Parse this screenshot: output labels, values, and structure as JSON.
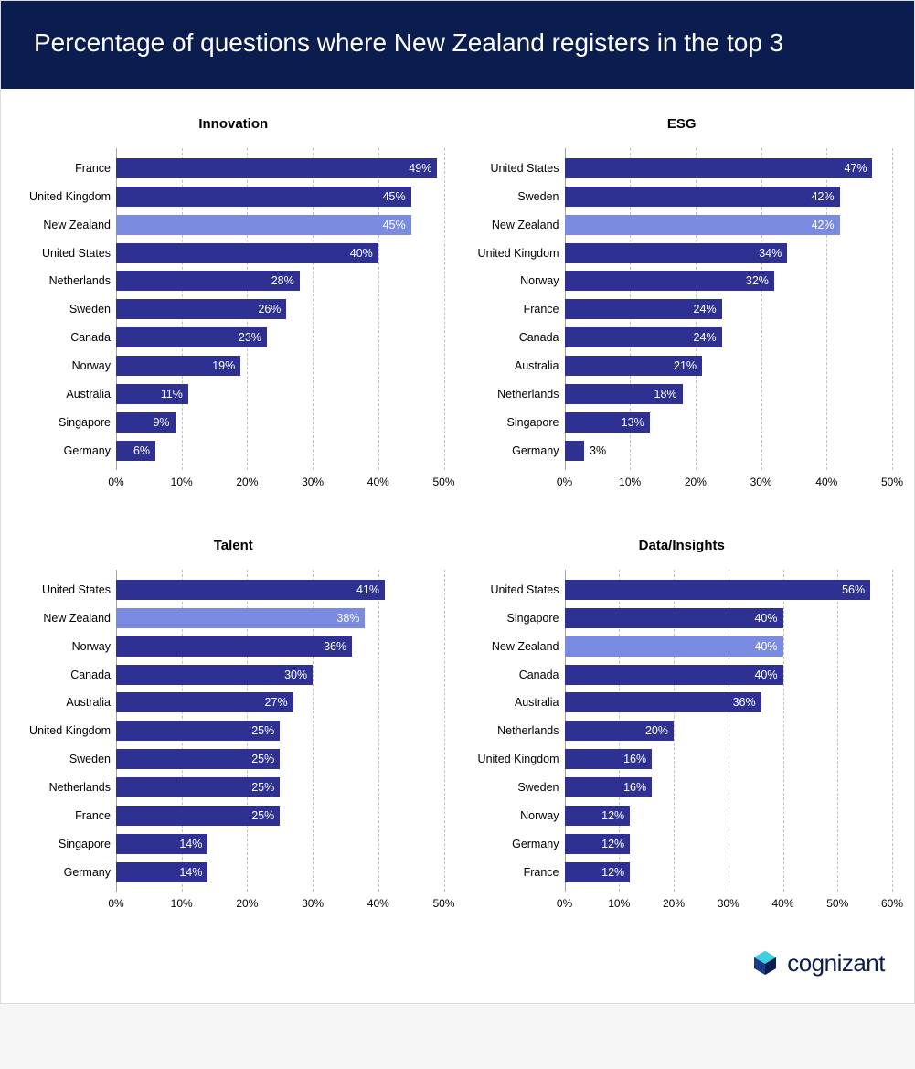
{
  "header": {
    "title": "Percentage of questions where New Zealand registers in the top 3"
  },
  "colors": {
    "header_bg": "#0a1d4e",
    "bar_default": "#2e3192",
    "bar_highlight": "#7b8ce0",
    "bar_value_text": "#ffffff",
    "gridline": "#999999",
    "text": "#000000",
    "card_bg": "#ffffff"
  },
  "highlight_country": "New Zealand",
  "panels": [
    {
      "title": "Innovation",
      "xmax": 50,
      "xtick_step": 10,
      "bars": [
        {
          "label": "France",
          "value": 49
        },
        {
          "label": "United Kingdom",
          "value": 45
        },
        {
          "label": "New Zealand",
          "value": 45
        },
        {
          "label": "United States",
          "value": 40
        },
        {
          "label": "Netherlands",
          "value": 28
        },
        {
          "label": "Sweden",
          "value": 26
        },
        {
          "label": "Canada",
          "value": 23
        },
        {
          "label": "Norway",
          "value": 19
        },
        {
          "label": "Australia",
          "value": 11
        },
        {
          "label": "Singapore",
          "value": 9
        },
        {
          "label": "Germany",
          "value": 6
        }
      ]
    },
    {
      "title": "ESG",
      "xmax": 50,
      "xtick_step": 10,
      "bars": [
        {
          "label": "United States",
          "value": 47
        },
        {
          "label": "Sweden",
          "value": 42
        },
        {
          "label": "New Zealand",
          "value": 42
        },
        {
          "label": "United Kingdom",
          "value": 34
        },
        {
          "label": "Norway",
          "value": 32
        },
        {
          "label": "France",
          "value": 24
        },
        {
          "label": "Canada",
          "value": 24
        },
        {
          "label": "Australia",
          "value": 21
        },
        {
          "label": "Netherlands",
          "value": 18
        },
        {
          "label": "Singapore",
          "value": 13
        },
        {
          "label": "Germany",
          "value": 3
        }
      ]
    },
    {
      "title": "Talent",
      "xmax": 50,
      "xtick_step": 10,
      "bars": [
        {
          "label": "United States",
          "value": 41
        },
        {
          "label": "New Zealand",
          "value": 38
        },
        {
          "label": "Norway",
          "value": 36
        },
        {
          "label": "Canada",
          "value": 30
        },
        {
          "label": "Australia",
          "value": 27
        },
        {
          "label": "United Kingdom",
          "value": 25
        },
        {
          "label": "Sweden",
          "value": 25
        },
        {
          "label": "Netherlands",
          "value": 25
        },
        {
          "label": "France",
          "value": 25
        },
        {
          "label": "Singapore",
          "value": 14
        },
        {
          "label": "Germany",
          "value": 14
        }
      ]
    },
    {
      "title": "Data/Insights",
      "xmax": 60,
      "xtick_step": 10,
      "bars": [
        {
          "label": "United States",
          "value": 56
        },
        {
          "label": "Singapore",
          "value": 40
        },
        {
          "label": "New Zealand",
          "value": 40
        },
        {
          "label": "Canada",
          "value": 40
        },
        {
          "label": "Australia",
          "value": 36
        },
        {
          "label": "Netherlands",
          "value": 20
        },
        {
          "label": "United Kingdom",
          "value": 16
        },
        {
          "label": "Sweden",
          "value": 16
        },
        {
          "label": "Norway",
          "value": 12
        },
        {
          "label": "Germany",
          "value": 12
        },
        {
          "label": "France",
          "value": 12
        }
      ]
    }
  ],
  "footer": {
    "logo_text": "cognizant"
  }
}
